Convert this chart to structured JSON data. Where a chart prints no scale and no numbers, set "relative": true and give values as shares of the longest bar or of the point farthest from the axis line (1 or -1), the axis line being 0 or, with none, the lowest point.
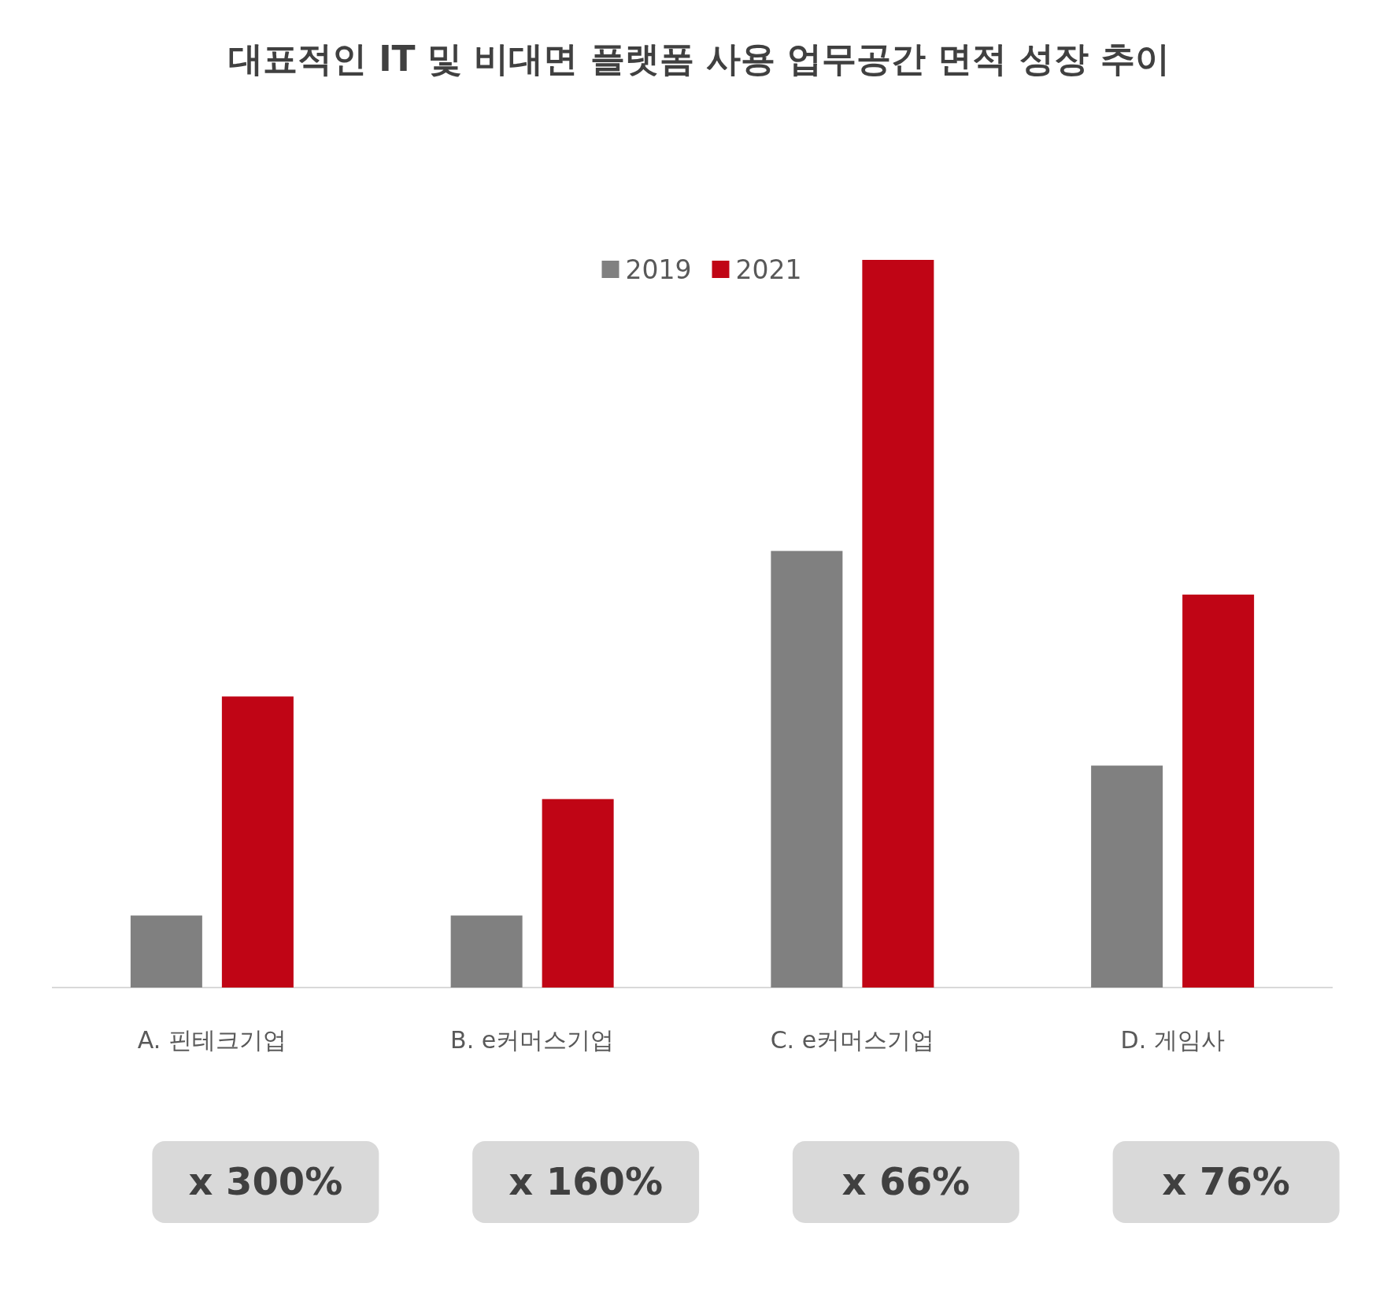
{
  "chart_data": {
    "type": "bar",
    "title": "대표적인 IT 및 비대면 플랫폼 사용 업무공간 면적 성장 추이",
    "categories": [
      "A. 핀테크기업",
      "B. e커머스기업",
      "C. e커머스기업",
      "D. 게임사"
    ],
    "relative": true,
    "series": [
      {
        "name": "2019",
        "color": "#808080",
        "values": [
          0.099,
          0.099,
          0.6,
          0.305
        ]
      },
      {
        "name": "2021",
        "color": "#c00515",
        "values": [
          0.4,
          0.259,
          1.0,
          0.54
        ]
      }
    ],
    "legend": "top",
    "annotations": [
      "x 300%",
      "x 160%",
      "x 66%",
      "x 76%"
    ]
  }
}
